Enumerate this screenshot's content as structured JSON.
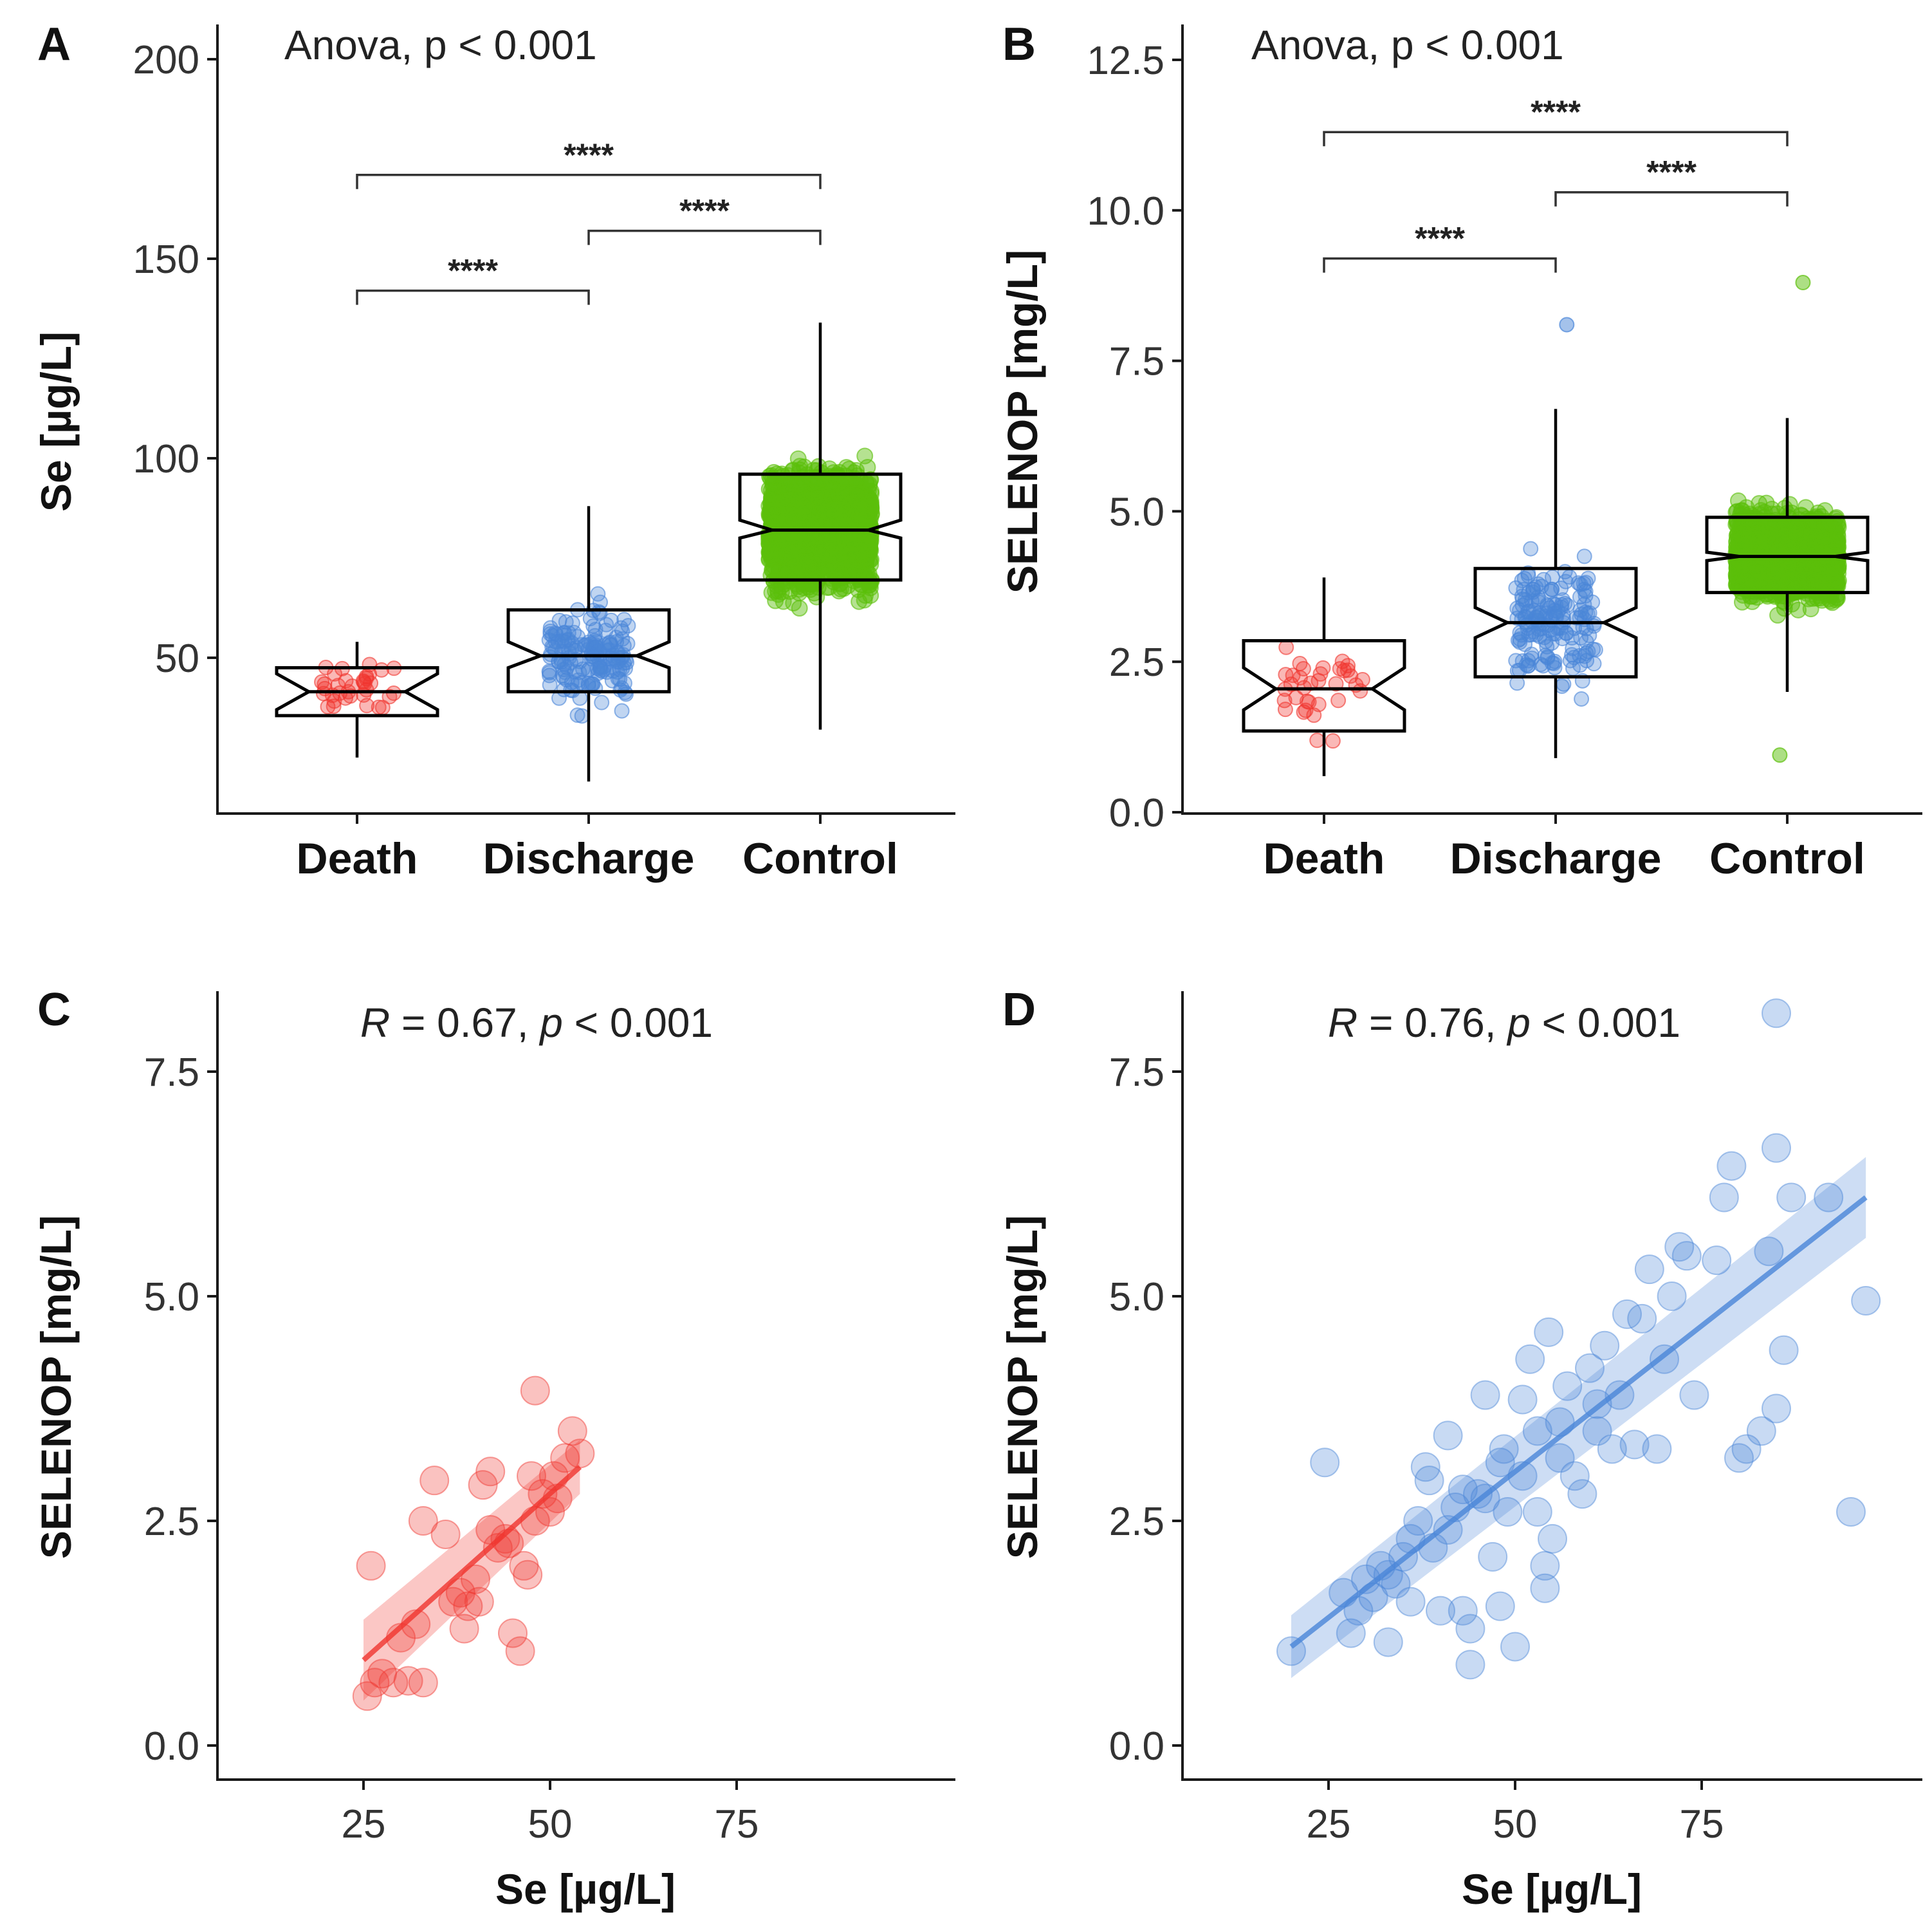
{
  "colors": {
    "death": "#f0352e",
    "discharge": "#4a86d8",
    "control": "#5bbf0a"
  },
  "chart_data": [
    {
      "id": "A",
      "type": "box",
      "panel_letter": "A",
      "ylabel": "Se [µg/L]",
      "ylim": [
        10,
        205
      ],
      "yticks": [
        50,
        100,
        150,
        200
      ],
      "ytick_labels": [
        "50",
        "100",
        "150",
        "200"
      ],
      "annotation": "Anova, p < 0.001",
      "categories": [
        "Death",
        "Discharge",
        "Control"
      ],
      "boxes": [
        {
          "category": "Death",
          "q1": 35.5,
          "median": 41.5,
          "q3": 47.5,
          "notch_lo": 37,
          "notch_hi": 46,
          "whisker_lo": 25,
          "whisker_hi": 54,
          "n": 35,
          "jitter_lo": 25,
          "jitter_hi": 55,
          "color_key": "death"
        },
        {
          "category": "Discharge",
          "q1": 41.5,
          "median": 50.5,
          "q3": 62,
          "notch_lo": 47.5,
          "notch_hi": 54,
          "whisker_lo": 19,
          "whisker_hi": 88,
          "n": 170,
          "jitter_lo": 20,
          "jitter_hi": 99,
          "color_key": "discharge"
        },
        {
          "category": "Control",
          "q1": 69.5,
          "median": 82,
          "q3": 96,
          "notch_lo": 80,
          "notch_hi": 84.5,
          "whisker_lo": 32,
          "whisker_hi": 134,
          "n": 1800,
          "jitter_lo": 30,
          "jitter_hi": 137,
          "color_key": "control"
        }
      ],
      "comparisons": [
        {
          "from": 0,
          "to": 1,
          "label": "****",
          "y": 142
        },
        {
          "from": 1,
          "to": 2,
          "label": "****",
          "y": 157
        },
        {
          "from": 0,
          "to": 2,
          "label": "****",
          "y": 171
        }
      ]
    },
    {
      "id": "B",
      "type": "box",
      "panel_letter": "B",
      "ylabel": "SELENOP [mg/L]",
      "ylim": [
        0,
        13
      ],
      "yticks": [
        0,
        2.5,
        5,
        7.5,
        10,
        12.5
      ],
      "ytick_labels": [
        "0.0",
        "2.5",
        "5.0",
        "7.5",
        "10.0",
        "12.5"
      ],
      "annotation": "Anova, p < 0.001",
      "categories": [
        "Death",
        "Discharge",
        "Control"
      ],
      "boxes": [
        {
          "category": "Death",
          "q1": 1.35,
          "median": 2.05,
          "q3": 2.85,
          "notch_lo": 1.7,
          "notch_hi": 2.4,
          "whisker_lo": 0.6,
          "whisker_hi": 3.9,
          "n": 35,
          "jitter_lo": 0.55,
          "jitter_hi": 4.0,
          "color_key": "death"
        },
        {
          "category": "Discharge",
          "q1": 2.25,
          "median": 3.15,
          "q3": 4.05,
          "notch_lo": 2.9,
          "notch_hi": 3.4,
          "whisker_lo": 0.9,
          "whisker_hi": 6.7,
          "n": 170,
          "jitter_lo": 0.85,
          "jitter_hi": 6.7,
          "color_key": "discharge"
        },
        {
          "category": "Control",
          "q1": 3.65,
          "median": 4.25,
          "q3": 4.9,
          "notch_lo": 4.18,
          "notch_hi": 4.32,
          "whisker_lo": 2.0,
          "whisker_hi": 6.55,
          "n": 1800,
          "jitter_lo": 1.8,
          "jitter_hi": 8.0,
          "color_key": "control"
        }
      ],
      "extra_points": [
        {
          "category": "Discharge",
          "y": 8.1
        },
        {
          "category": "Control",
          "y": 8.8
        },
        {
          "category": "Control",
          "y": 0.95
        }
      ],
      "comparisons": [
        {
          "from": 0,
          "to": 1,
          "label": "****",
          "y": 9.2
        },
        {
          "from": 1,
          "to": 2,
          "label": "****",
          "y": 10.3
        },
        {
          "from": 0,
          "to": 2,
          "label": "****",
          "y": 11.3
        }
      ]
    },
    {
      "id": "C",
      "type": "scatter",
      "panel_letter": "C",
      "xlabel": "Se [µg/L]",
      "ylabel": "SELENOP [mg/L]",
      "xlim": [
        6,
        102
      ],
      "ylim": [
        -0.4,
        8.4
      ],
      "xticks": [
        25,
        50,
        75
      ],
      "xtick_labels": [
        "25",
        "50",
        "75"
      ],
      "yticks": [
        0,
        2.5,
        5,
        7.5
      ],
      "ytick_labels": [
        "0.0",
        "2.5",
        "5.0",
        "7.5"
      ],
      "annotation": "R = 0.67, p < 0.001",
      "annotation_r": "R",
      "annotation_r_value": " = 0.67, ",
      "annotation_p": "p",
      "annotation_p_value": " < 0.001",
      "color_key": "death",
      "fit": {
        "x0": 25,
        "y0": 0.95,
        "x1": 54,
        "y1": 3.1,
        "band_start": 0.45,
        "band_end": 0.3
      },
      "points": [
        [
          25.5,
          0.55
        ],
        [
          26.5,
          0.7
        ],
        [
          27.5,
          0.8
        ],
        [
          29,
          0.7
        ],
        [
          31,
          0.72
        ],
        [
          33,
          0.7
        ],
        [
          26,
          2.0
        ],
        [
          30,
          1.2
        ],
        [
          32,
          1.35
        ],
        [
          33,
          2.5
        ],
        [
          34.5,
          2.95
        ],
        [
          36,
          2.35
        ],
        [
          37,
          1.6
        ],
        [
          38,
          1.7
        ],
        [
          38.5,
          1.3
        ],
        [
          39,
          1.55
        ],
        [
          40,
          1.85
        ],
        [
          40.5,
          1.6
        ],
        [
          41,
          2.9
        ],
        [
          42,
          3.05
        ],
        [
          42,
          2.4
        ],
        [
          43,
          2.2
        ],
        [
          44,
          2.3
        ],
        [
          45,
          1.25
        ],
        [
          46,
          1.05
        ],
        [
          46.5,
          2.0
        ],
        [
          47,
          1.9
        ],
        [
          47.5,
          3.0
        ],
        [
          48,
          2.5
        ],
        [
          48,
          3.95
        ],
        [
          49,
          2.8
        ],
        [
          50,
          2.6
        ],
        [
          51,
          2.75
        ],
        [
          52,
          3.2
        ],
        [
          53,
          3.5
        ],
        [
          54,
          3.25
        ],
        [
          50.5,
          3.0
        ],
        [
          44.5,
          2.25
        ]
      ]
    },
    {
      "id": "D",
      "type": "scatter",
      "panel_letter": "D",
      "xlabel": "Se [µg/L]",
      "ylabel": "SELENOP [mg/L]",
      "xlim": [
        6,
        102
      ],
      "ylim": [
        -0.4,
        8.4
      ],
      "xticks": [
        25,
        50,
        75
      ],
      "xtick_labels": [
        "25",
        "50",
        "75"
      ],
      "yticks": [
        0,
        2.5,
        5,
        7.5
      ],
      "ytick_labels": [
        "0.0",
        "2.5",
        "5.0",
        "7.5"
      ],
      "annotation": "R = 0.76, p < 0.001",
      "annotation_r": "R",
      "annotation_r_value": " = 0.76, ",
      "annotation_p": "p",
      "annotation_p_value": " < 0.001",
      "color_key": "discharge",
      "fit": {
        "x0": 20,
        "y0": 1.1,
        "x1": 97,
        "y1": 6.1,
        "band_start": 0.35,
        "band_end": 0.45
      },
      "points": [
        [
          20,
          1.05
        ],
        [
          24.5,
          3.15
        ],
        [
          27,
          1.7
        ],
        [
          28,
          1.25
        ],
        [
          29,
          1.5
        ],
        [
          30,
          1.85
        ],
        [
          31,
          1.65
        ],
        [
          32,
          2.0
        ],
        [
          33,
          1.15
        ],
        [
          34,
          1.8
        ],
        [
          35,
          2.1
        ],
        [
          36,
          1.6
        ],
        [
          37,
          2.5
        ],
        [
          38,
          3.1
        ],
        [
          38.5,
          2.95
        ],
        [
          39,
          2.2
        ],
        [
          40,
          1.5
        ],
        [
          41,
          3.45
        ],
        [
          42,
          2.65
        ],
        [
          43,
          1.5
        ],
        [
          44,
          1.3
        ],
        [
          44,
          0.9
        ],
        [
          45,
          2.8
        ],
        [
          46,
          3.9
        ],
        [
          47,
          2.1
        ],
        [
          48,
          1.55
        ],
        [
          48.5,
          3.3
        ],
        [
          49,
          2.6
        ],
        [
          50,
          1.1
        ],
        [
          51,
          3.85
        ],
        [
          52,
          4.3
        ],
        [
          53,
          3.5
        ],
        [
          54,
          2.0
        ],
        [
          54,
          1.75
        ],
        [
          54.5,
          4.6
        ],
        [
          55,
          2.3
        ],
        [
          56,
          3.6
        ],
        [
          57,
          4.0
        ],
        [
          58,
          3.0
        ],
        [
          59,
          2.8
        ],
        [
          60,
          4.2
        ],
        [
          61,
          3.8
        ],
        [
          62,
          4.45
        ],
        [
          63,
          3.3
        ],
        [
          64,
          3.9
        ],
        [
          65,
          4.8
        ],
        [
          66,
          3.35
        ],
        [
          67,
          4.75
        ],
        [
          68,
          5.3
        ],
        [
          69,
          3.3
        ],
        [
          70,
          4.3
        ],
        [
          71,
          5.0
        ],
        [
          72,
          5.55
        ],
        [
          73,
          5.45
        ],
        [
          74,
          3.9
        ],
        [
          77,
          5.4
        ],
        [
          78,
          6.1
        ],
        [
          80,
          3.2
        ],
        [
          81,
          3.3
        ],
        [
          83,
          3.5
        ],
        [
          84,
          5.5
        ],
        [
          85,
          3.75
        ],
        [
          86,
          4.4
        ],
        [
          79,
          6.45
        ],
        [
          85,
          6.65
        ],
        [
          87,
          6.1
        ],
        [
          92,
          6.1
        ],
        [
          97,
          4.95
        ],
        [
          95,
          2.6
        ],
        [
          85,
          8.15
        ],
        [
          36,
          2.3
        ],
        [
          41,
          2.4
        ],
        [
          46,
          2.75
        ],
        [
          51,
          3.0
        ],
        [
          56,
          3.2
        ],
        [
          61,
          3.5
        ],
        [
          33,
          1.9
        ],
        [
          43,
          2.85
        ],
        [
          48,
          3.15
        ],
        [
          53,
          2.6
        ]
      ]
    }
  ]
}
